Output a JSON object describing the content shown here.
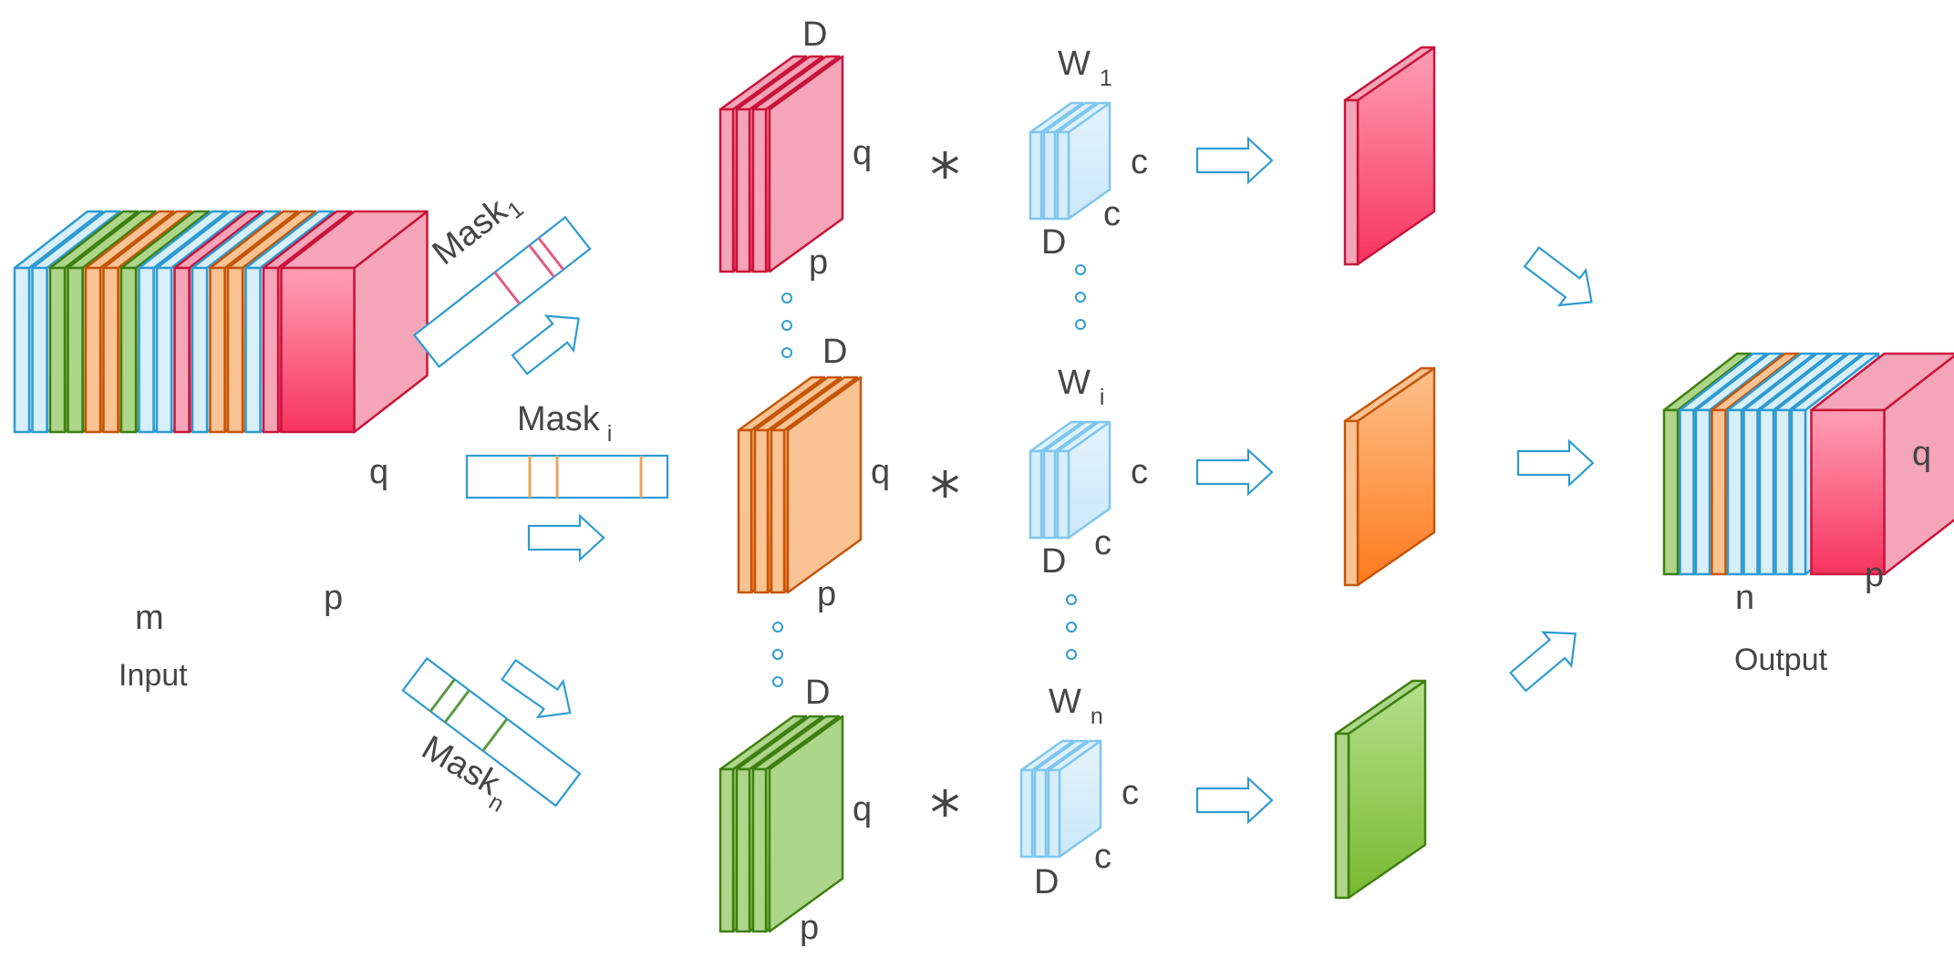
{
  "colors": {
    "blue": "#2e9bd1",
    "green": "#6aad2c",
    "orange": "#f58a2d",
    "red": "#f0496b",
    "light_blue": "#bde3f9",
    "label": "#454545"
  },
  "input": {
    "label": "Input",
    "dim_depth": "m",
    "dim_height": "q",
    "dim_width": "p",
    "layer_colors": [
      "blue",
      "blue",
      "green",
      "green",
      "orange",
      "orange",
      "green",
      "blue",
      "blue",
      "red",
      "blue",
      "orange",
      "orange",
      "blue",
      "red",
      "red"
    ]
  },
  "masks": [
    {
      "label": "Mask",
      "sub": "1",
      "stripe_color": "red"
    },
    {
      "label": "Mask",
      "sub": "i",
      "stripe_color": "orange"
    },
    {
      "label": "Mask",
      "sub": "n",
      "stripe_color": "green"
    }
  ],
  "branches": [
    {
      "color": "red",
      "depth_label": "D",
      "height_label": "q",
      "width_label": "p",
      "operator": "*",
      "kernel": {
        "label": "W",
        "sub": "1",
        "size_label_1": "c",
        "size_label_2": "c",
        "depth_label": "D"
      }
    },
    {
      "color": "orange",
      "depth_label": "D",
      "height_label": "q",
      "width_label": "p",
      "operator": "*",
      "kernel": {
        "label": "W",
        "sub": "i",
        "size_label_1": "c",
        "size_label_2": "c",
        "depth_label": "D"
      }
    },
    {
      "color": "green",
      "depth_label": "D",
      "height_label": "q",
      "width_label": "p",
      "operator": "*",
      "kernel": {
        "label": "W",
        "sub": "n",
        "size_label_1": "c",
        "size_label_2": "c",
        "depth_label": "D"
      }
    }
  ],
  "output": {
    "label": "Output",
    "dim_depth": "n",
    "dim_height": "q",
    "dim_width": "p",
    "layer_colors": [
      "green",
      "blue",
      "blue",
      "orange",
      "blue",
      "blue",
      "blue",
      "blue",
      "blue",
      "red"
    ]
  }
}
